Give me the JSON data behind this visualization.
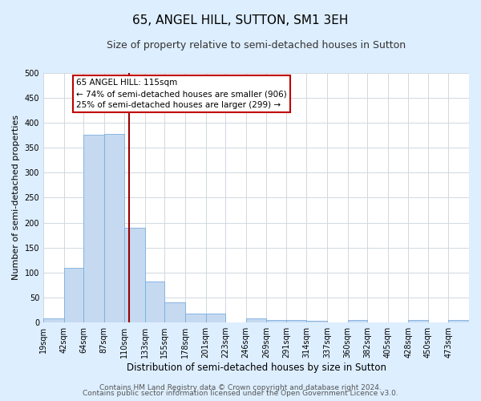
{
  "title": "65, ANGEL HILL, SUTTON, SM1 3EH",
  "subtitle": "Size of property relative to semi-detached houses in Sutton",
  "xlabel": "Distribution of semi-detached houses by size in Sutton",
  "ylabel": "Number of semi-detached properties",
  "bin_labels": [
    "19sqm",
    "42sqm",
    "64sqm",
    "87sqm",
    "110sqm",
    "133sqm",
    "155sqm",
    "178sqm",
    "201sqm",
    "223sqm",
    "246sqm",
    "269sqm",
    "291sqm",
    "314sqm",
    "337sqm",
    "360sqm",
    "382sqm",
    "405sqm",
    "428sqm",
    "450sqm",
    "473sqm"
  ],
  "bin_edges": [
    19,
    42,
    64,
    87,
    110,
    133,
    155,
    178,
    201,
    223,
    246,
    269,
    291,
    314,
    337,
    360,
    382,
    405,
    428,
    450,
    473,
    496
  ],
  "bar_heights": [
    8,
    110,
    375,
    378,
    190,
    82,
    40,
    18,
    18,
    0,
    8,
    5,
    5,
    3,
    0,
    5,
    0,
    0,
    5,
    0,
    5
  ],
  "bar_color": "#c5d9f0",
  "bar_edgecolor": "#7aadde",
  "marker_value": 115,
  "marker_color": "#9b0000",
  "annotation_title": "65 ANGEL HILL: 115sqm",
  "annotation_left": "← 74% of semi-detached houses are smaller (906)",
  "annotation_right": "25% of semi-detached houses are larger (299) →",
  "annotation_box_facecolor": "#ffffff",
  "annotation_box_edgecolor": "#c00000",
  "ylim": [
    0,
    500
  ],
  "yticks": [
    0,
    50,
    100,
    150,
    200,
    250,
    300,
    350,
    400,
    450,
    500
  ],
  "footer1": "Contains HM Land Registry data © Crown copyright and database right 2024.",
  "footer2": "Contains public sector information licensed under the Open Government Licence v3.0.",
  "fig_facecolor": "#ddeeff",
  "plot_facecolor": "#ffffff",
  "title_fontsize": 11,
  "subtitle_fontsize": 9,
  "xlabel_fontsize": 8.5,
  "ylabel_fontsize": 8,
  "tick_fontsize": 7,
  "footer_fontsize": 6.5,
  "annotation_fontsize": 7.5
}
